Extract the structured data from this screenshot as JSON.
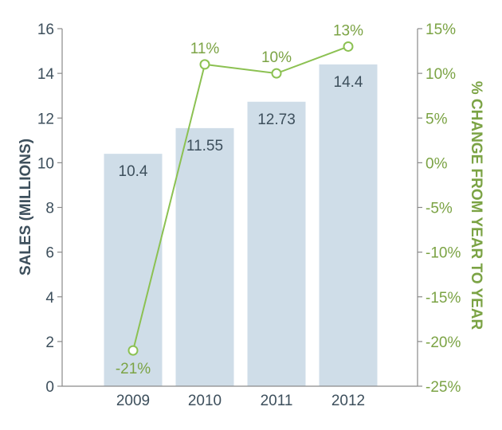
{
  "chart_data": {
    "type": "bar",
    "categories": [
      "2009",
      "2010",
      "2011",
      "2012"
    ],
    "ylabel": "SALES (MILLIONS)",
    "y2label": "% CHANGE FROM YEAR TO YEAR",
    "ylim": [
      0,
      16
    ],
    "y_ticks": [
      "0",
      "2",
      "4",
      "6",
      "8",
      "10",
      "12",
      "14",
      "16"
    ],
    "y2lim": [
      -25,
      15
    ],
    "y2_ticks": [
      "-25%",
      "-20%",
      "-15%",
      "-10%",
      "-5%",
      "0%",
      "5%",
      "10%",
      "15%"
    ],
    "grid": false,
    "series": [
      {
        "type": "bar",
        "axis": "left",
        "values": [
          10.4,
          11.55,
          12.73,
          14.4
        ],
        "labels": [
          "10.4",
          "11.55",
          "12.73",
          "14.4"
        ]
      },
      {
        "type": "line",
        "axis": "right",
        "values": [
          -21,
          11,
          10,
          13
        ],
        "labels": [
          "-21%",
          "11%",
          "10%",
          "13%"
        ]
      }
    ]
  },
  "colors": {
    "bar": "#cfdde8",
    "line": "#8cc152",
    "left_axis_text": "#3d4f5c",
    "right_axis_text": "#7ba344",
    "axis_line": "#8a8a8a"
  }
}
